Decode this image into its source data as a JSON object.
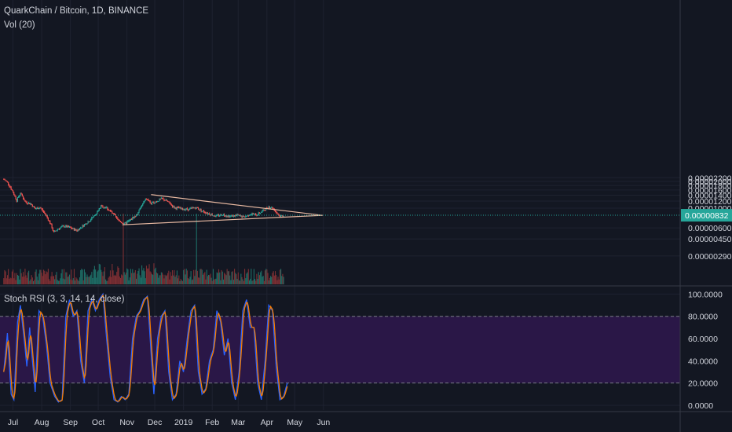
{
  "header": {
    "symbol_line": "QuarkChain / Bitcoin, 1D, BINANCE",
    "volume_line": "Vol (20)",
    "rsi_line": "Stoch RSI (3, 3, 14, 14, close)"
  },
  "colors": {
    "background": "#131722",
    "up": "#26a69a",
    "down": "#ef5350",
    "volume_up": "#1e6e66",
    "volume_down": "#7d2f33",
    "trendline": "#e8b9a2",
    "rsi_k": "#2962ff",
    "rsi_d": "#f57c00",
    "rsi_band": "#2a1747",
    "grid": "#1e2230",
    "last_price_tag": "#26a69a"
  },
  "current_price": "0.00000832",
  "chart_data": [
    {
      "type": "candlestick",
      "title": "QuarkChain / Bitcoin, 1D, BINANCE",
      "x_labels": [
        "Jul",
        "Aug",
        "Sep",
        "Oct",
        "Nov",
        "Dec",
        "2019",
        "Feb",
        "Mar",
        "Apr",
        "May",
        "Jun"
      ],
      "y_tick_labels": [
        "0.00002200",
        "0.00002000",
        "0.00001800",
        "0.00001600",
        "0.00001400",
        "0.00001200",
        "0.00001000",
        "0.00000600",
        "0.00000450",
        "0.00000290"
      ],
      "y_tick_values": [
        2.2e-05,
        2e-05,
        1.8e-05,
        1.6e-05,
        1.4e-05,
        1.2e-05,
        1e-05,
        6e-06,
        4.5e-06,
        2.9e-06
      ],
      "last_price": 8.32e-06,
      "grid": true,
      "series": [
        {
          "name": "Price (close, approx.)",
          "anchors": [
            [
              "2018-06-21",
              2.12e-05
            ],
            [
              "2018-06-25",
              1.95e-05
            ],
            [
              "2018-06-30",
              1.58e-05
            ],
            [
              "2018-07-05",
              1.22e-05
            ],
            [
              "2018-07-09",
              1.48e-05
            ],
            [
              "2018-07-14",
              1.18e-05
            ],
            [
              "2018-07-20",
              1.12e-05
            ],
            [
              "2018-07-25",
              9.8e-06
            ],
            [
              "2018-07-30",
              1.02e-05
            ],
            [
              "2018-08-05",
              8.5e-06
            ],
            [
              "2018-08-10",
              6.8e-06
            ],
            [
              "2018-08-14",
              5.3e-06
            ],
            [
              "2018-08-18",
              5.8e-06
            ],
            [
              "2018-08-25",
              6.3e-06
            ],
            [
              "2018-09-01",
              6e-06
            ],
            [
              "2018-09-08",
              5.6e-06
            ],
            [
              "2018-09-15",
              6.4e-06
            ],
            [
              "2018-09-22",
              7.3e-06
            ],
            [
              "2018-09-28",
              8.5e-06
            ],
            [
              "2018-10-04",
              1.05e-05
            ],
            [
              "2018-10-10",
              1.01e-05
            ],
            [
              "2018-10-16",
              8.8e-06
            ],
            [
              "2018-10-22",
              7.4e-06
            ],
            [
              "2018-10-29",
              6.6e-06
            ],
            [
              "2018-11-05",
              7.4e-06
            ],
            [
              "2018-11-12",
              8.5e-06
            ],
            [
              "2018-11-18",
              1.12e-05
            ],
            [
              "2018-11-22",
              1.28e-05
            ],
            [
              "2018-11-27",
              1.12e-05
            ],
            [
              "2018-12-03",
              1.2e-05
            ],
            [
              "2018-12-09",
              1.28e-05
            ],
            [
              "2018-12-15",
              1.18e-05
            ],
            [
              "2018-12-22",
              1.02e-05
            ],
            [
              "2018-12-30",
              9.8e-06
            ],
            [
              "2019-01-07",
              9.7e-06
            ],
            [
              "2019-01-14",
              1.02e-05
            ],
            [
              "2019-01-21",
              9.3e-06
            ],
            [
              "2019-01-28",
              8.7e-06
            ],
            [
              "2019-02-05",
              8.1e-06
            ],
            [
              "2019-02-12",
              8.5e-06
            ],
            [
              "2019-02-20",
              8.1e-06
            ],
            [
              "2019-02-28",
              8.3e-06
            ],
            [
              "2019-03-07",
              7.9e-06
            ],
            [
              "2019-03-14",
              8.6e-06
            ],
            [
              "2019-03-21",
              8.4e-06
            ],
            [
              "2019-03-28",
              9.4e-06
            ],
            [
              "2019-04-03",
              1.04e-05
            ],
            [
              "2019-04-07",
              1.01e-05
            ],
            [
              "2019-04-12",
              8.8e-06
            ],
            [
              "2019-04-15",
              8.1e-06
            ],
            [
              "2019-04-19",
              8.3e-06
            ]
          ]
        }
      ],
      "trendlines": [
        {
          "name": "upper",
          "from": [
            "2018-11-27",
            1.42e-05
          ],
          "to": [
            "2019-05-31",
            8.3e-06
          ]
        },
        {
          "name": "lower",
          "from": [
            "2018-10-27",
            6.5e-06
          ],
          "to": [
            "2019-05-31",
            8.3e-06
          ]
        }
      ]
    },
    {
      "type": "line",
      "title": "Stoch RSI (3, 3, 14, 14, close)",
      "y_tick_labels": [
        "100.0000",
        "80.0000",
        "60.0000",
        "40.0000",
        "20.0000",
        "0.0000"
      ],
      "ylim": [
        0,
        100
      ],
      "bands": [
        20,
        80
      ],
      "series": [
        {
          "name": "K",
          "anchors": [
            [
              "2018-06-21",
              30
            ],
            [
              "2018-06-25",
              65
            ],
            [
              "2018-06-29",
              10
            ],
            [
              "2018-07-02",
              5
            ],
            [
              "2018-07-06",
              75
            ],
            [
              "2018-07-09",
              90
            ],
            [
              "2018-07-13",
              60
            ],
            [
              "2018-07-16",
              35
            ],
            [
              "2018-07-19",
              70
            ],
            [
              "2018-07-22",
              40
            ],
            [
              "2018-07-25",
              12
            ],
            [
              "2018-07-29",
              85
            ],
            [
              "2018-08-02",
              80
            ],
            [
              "2018-08-06",
              55
            ],
            [
              "2018-08-10",
              20
            ],
            [
              "2018-08-15",
              8
            ],
            [
              "2018-08-19",
              3
            ],
            [
              "2018-08-23",
              5
            ],
            [
              "2018-08-27",
              80
            ],
            [
              "2018-08-31",
              95
            ],
            [
              "2018-09-04",
              80
            ],
            [
              "2018-09-08",
              85
            ],
            [
              "2018-09-12",
              40
            ],
            [
              "2018-09-16",
              20
            ],
            [
              "2018-09-20",
              85
            ],
            [
              "2018-09-24",
              95
            ],
            [
              "2018-09-28",
              85
            ],
            [
              "2018-10-02",
              95
            ],
            [
              "2018-10-06",
              100
            ],
            [
              "2018-10-10",
              60
            ],
            [
              "2018-10-14",
              25
            ],
            [
              "2018-10-18",
              5
            ],
            [
              "2018-10-22",
              3
            ],
            [
              "2018-10-26",
              8
            ],
            [
              "2018-10-30",
              5
            ],
            [
              "2018-11-03",
              10
            ],
            [
              "2018-11-07",
              60
            ],
            [
              "2018-11-11",
              80
            ],
            [
              "2018-11-15",
              85
            ],
            [
              "2018-11-19",
              95
            ],
            [
              "2018-11-23",
              98
            ],
            [
              "2018-11-26",
              60
            ],
            [
              "2018-11-30",
              10
            ],
            [
              "2018-12-04",
              60
            ],
            [
              "2018-12-08",
              80
            ],
            [
              "2018-12-12",
              85
            ],
            [
              "2018-12-16",
              30
            ],
            [
              "2018-12-20",
              5
            ],
            [
              "2018-12-24",
              10
            ],
            [
              "2018-12-28",
              40
            ],
            [
              "2019-01-01",
              30
            ],
            [
              "2019-01-05",
              60
            ],
            [
              "2019-01-09",
              85
            ],
            [
              "2019-01-13",
              90
            ],
            [
              "2019-01-17",
              30
            ],
            [
              "2019-01-21",
              10
            ],
            [
              "2019-01-25",
              15
            ],
            [
              "2019-01-29",
              40
            ],
            [
              "2019-02-02",
              50
            ],
            [
              "2019-02-06",
              85
            ],
            [
              "2019-02-10",
              75
            ],
            [
              "2019-02-14",
              45
            ],
            [
              "2019-02-18",
              60
            ],
            [
              "2019-02-22",
              20
            ],
            [
              "2019-02-26",
              5
            ],
            [
              "2019-03-02",
              30
            ],
            [
              "2019-03-06",
              85
            ],
            [
              "2019-03-10",
              95
            ],
            [
              "2019-03-14",
              70
            ],
            [
              "2019-03-18",
              70
            ],
            [
              "2019-03-22",
              20
            ],
            [
              "2019-03-26",
              5
            ],
            [
              "2019-03-30",
              40
            ],
            [
              "2019-04-03",
              90
            ],
            [
              "2019-04-07",
              85
            ],
            [
              "2019-04-11",
              35
            ],
            [
              "2019-04-15",
              5
            ],
            [
              "2019-04-19",
              8
            ],
            [
              "2019-04-23",
              20
            ]
          ]
        },
        {
          "name": "D",
          "smoothing_of": "K"
        }
      ]
    },
    {
      "type": "bar",
      "title": "Vol (20)",
      "series": [
        {
          "name": "Volume",
          "pattern": "daily, colored by candle direction",
          "spikes": [
            "2018-10-28",
            "2019-01-15"
          ]
        }
      ]
    }
  ]
}
